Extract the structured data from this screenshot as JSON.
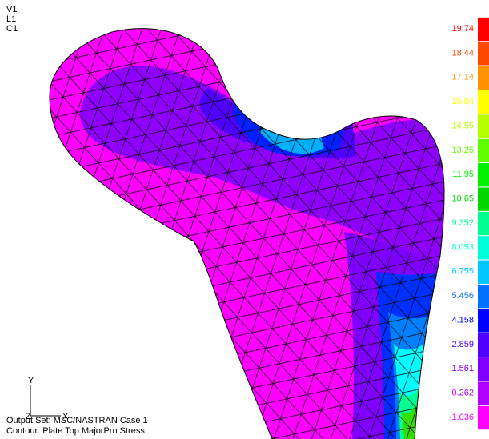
{
  "view_labels": [
    "V1",
    "L1",
    "C1"
  ],
  "legend": [
    {
      "label": "19.74",
      "color": "#ff0000"
    },
    {
      "label": "18.44",
      "color": "#ff4800"
    },
    {
      "label": "17.14",
      "color": "#ff9400"
    },
    {
      "label": "15.84",
      "color": "#ffff00"
    },
    {
      "label": "14.55",
      "color": "#b8ff00"
    },
    {
      "label": "13.25",
      "color": "#60ff00"
    },
    {
      "label": "11.95",
      "color": "#00f000"
    },
    {
      "label": "10.65",
      "color": "#00d800"
    },
    {
      "label": "9.352",
      "color": "#00ff90"
    },
    {
      "label": "8.053",
      "color": "#00ffd8"
    },
    {
      "label": "6.755",
      "color": "#00c8ff"
    },
    {
      "label": "5.456",
      "color": "#0070ff"
    },
    {
      "label": "4.158",
      "color": "#0000ff"
    },
    {
      "label": "2.859",
      "color": "#5000ff"
    },
    {
      "label": "1.561",
      "color": "#8000ff"
    },
    {
      "label": "0.262",
      "color": "#b000ff"
    },
    {
      "label": "-1.036",
      "color": "#ff00ff"
    }
  ],
  "triad": {
    "y": "Y",
    "x": "X",
    "z": "Z"
  },
  "footer": {
    "output_set": "Output Set: MSC/NASTRAN Case 1",
    "contour": "Contour: Plate Top MajorPrn Stress"
  }
}
